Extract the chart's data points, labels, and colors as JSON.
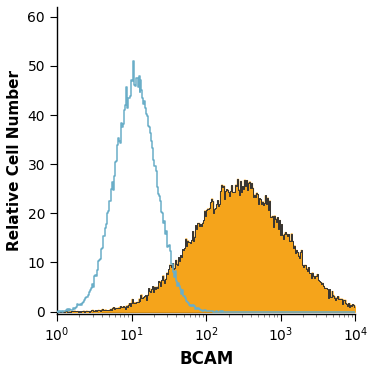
{
  "title": "",
  "xlabel": "BCAM",
  "ylabel": "Relative Cell Number",
  "xlim": [
    1,
    10000
  ],
  "ylim": [
    -0.5,
    62
  ],
  "yticks": [
    0,
    10,
    20,
    30,
    40,
    50,
    60
  ],
  "blue_color": "#6aaec8",
  "orange_color": "#f5a41b",
  "orange_edge_color": "#333333",
  "background_color": "#ffffff",
  "xlabel_fontsize": 12,
  "ylabel_fontsize": 11,
  "tick_fontsize": 10,
  "blue_log_mean": 1.05,
  "blue_log_std": 0.28,
  "orange_log_mean": 2.45,
  "orange_log_std": 0.62,
  "blue_peak": 51,
  "orange_peak": 27,
  "n_bins": 300
}
